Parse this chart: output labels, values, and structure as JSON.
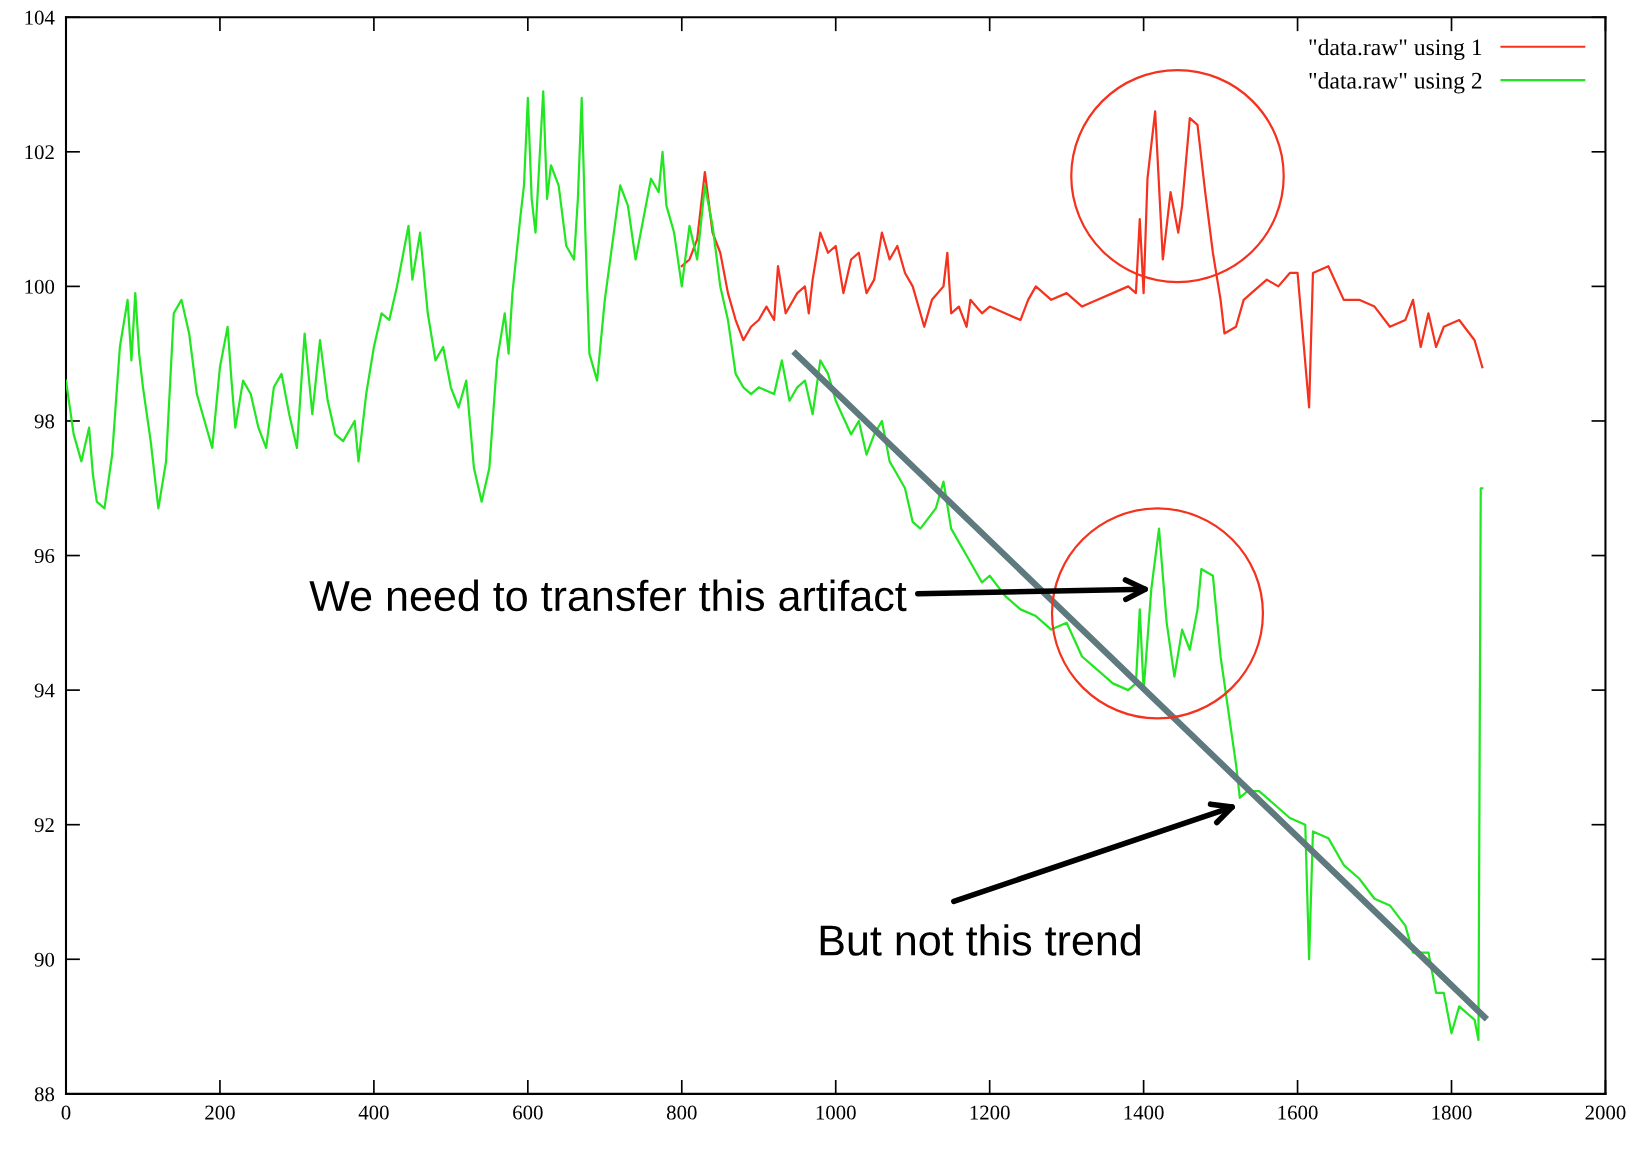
{
  "chart_data": {
    "type": "line",
    "xlim": [
      0,
      2000
    ],
    "ylim": [
      88,
      104
    ],
    "xticks": [
      0,
      200,
      400,
      600,
      800,
      1000,
      1200,
      1400,
      1600,
      1800,
      2000
    ],
    "yticks": [
      88,
      90,
      92,
      94,
      96,
      98,
      100,
      102,
      104
    ],
    "grid": false,
    "legend": "top right",
    "marker": "none",
    "line_style": "solid",
    "annotations": [
      {
        "text": "We need to transfer this artifact",
        "x": 1410,
        "y": 95.5
      },
      "But not this trend"
    ],
    "series": [
      {
        "name": "\"data.raw\" using 1",
        "color": "#f5321e",
        "x": [
          800,
          810,
          820,
          830,
          840,
          850,
          860,
          870,
          880,
          890,
          900,
          910,
          920,
          925,
          935,
          950,
          960,
          965,
          970,
          980,
          990,
          1000,
          1010,
          1020,
          1030,
          1040,
          1050,
          1060,
          1070,
          1080,
          1090,
          1100,
          1110,
          1115,
          1125,
          1140,
          1145,
          1150,
          1160,
          1170,
          1175,
          1190,
          1200,
          1220,
          1240,
          1250,
          1260,
          1280,
          1300,
          1320,
          1340,
          1360,
          1380,
          1390,
          1395,
          1400,
          1405,
          1415,
          1425,
          1435,
          1445,
          1450,
          1460,
          1470,
          1480,
          1490,
          1500,
          1505,
          1520,
          1530,
          1540,
          1560,
          1575,
          1590,
          1600,
          1615,
          1620,
          1640,
          1660,
          1680,
          1700,
          1720,
          1740,
          1750,
          1760,
          1770,
          1780,
          1790,
          1810,
          1830,
          1840
        ],
        "values": [
          100.3,
          100.4,
          100.7,
          101.7,
          100.8,
          100.5,
          99.9,
          99.5,
          99.2,
          99.4,
          99.5,
          99.7,
          99.5,
          100.3,
          99.6,
          99.9,
          100.0,
          99.6,
          100.1,
          100.8,
          100.5,
          100.6,
          99.9,
          100.4,
          100.5,
          99.9,
          100.1,
          100.8,
          100.4,
          100.6,
          100.2,
          100.0,
          99.6,
          99.4,
          99.8,
          100.0,
          100.5,
          99.6,
          99.7,
          99.4,
          99.8,
          99.6,
          99.7,
          99.6,
          99.5,
          99.8,
          100.0,
          99.8,
          99.9,
          99.7,
          99.8,
          99.9,
          100.0,
          99.9,
          101.0,
          99.9,
          101.6,
          102.6,
          100.4,
          101.4,
          100.8,
          101.2,
          102.5,
          102.4,
          101.4,
          100.5,
          99.8,
          99.3,
          99.4,
          99.8,
          99.9,
          100.1,
          100.0,
          100.2,
          100.2,
          98.2,
          100.2,
          100.3,
          99.8,
          99.8,
          99.7,
          99.4,
          99.5,
          99.8,
          99.1,
          99.6,
          99.1,
          99.4,
          99.5,
          99.2,
          98.8
        ]
      },
      {
        "name": "\"data.raw\" using 2",
        "color": "#22e622",
        "x": [
          0,
          10,
          20,
          30,
          35,
          40,
          50,
          60,
          70,
          80,
          85,
          90,
          95,
          100,
          110,
          120,
          130,
          140,
          150,
          160,
          170,
          180,
          190,
          200,
          210,
          215,
          220,
          230,
          240,
          250,
          260,
          270,
          280,
          290,
          300,
          310,
          320,
          330,
          340,
          350,
          360,
          375,
          380,
          390,
          400,
          410,
          420,
          430,
          445,
          450,
          460,
          470,
          480,
          490,
          500,
          510,
          520,
          530,
          540,
          550,
          560,
          570,
          575,
          580,
          590,
          595,
          600,
          605,
          610,
          620,
          625,
          630,
          640,
          650,
          660,
          665,
          670,
          675,
          680,
          690,
          700,
          720,
          730,
          740,
          750,
          760,
          770,
          775,
          780,
          790,
          800,
          810,
          820,
          830,
          840,
          850,
          860,
          870,
          880,
          890,
          900,
          920,
          930,
          940,
          950,
          960,
          970,
          980,
          990,
          1000,
          1020,
          1030,
          1040,
          1050,
          1060,
          1070,
          1080,
          1090,
          1100,
          1110,
          1130,
          1140,
          1150,
          1160,
          1170,
          1190,
          1200,
          1220,
          1240,
          1260,
          1280,
          1300,
          1320,
          1340,
          1360,
          1380,
          1390,
          1395,
          1400,
          1410,
          1420,
          1430,
          1440,
          1450,
          1460,
          1470,
          1475,
          1490,
          1500,
          1510,
          1520,
          1525,
          1535,
          1550,
          1570,
          1590,
          1610,
          1615,
          1620,
          1640,
          1660,
          1680,
          1700,
          1720,
          1740,
          1750,
          1770,
          1780,
          1790,
          1800,
          1810,
          1820,
          1830,
          1835,
          1838,
          1840
        ],
        "values": [
          98.6,
          97.8,
          97.4,
          97.9,
          97.2,
          96.8,
          96.7,
          97.5,
          99.1,
          99.8,
          98.9,
          99.9,
          99.0,
          98.5,
          97.7,
          96.7,
          97.4,
          99.6,
          99.8,
          99.3,
          98.4,
          98.0,
          97.6,
          98.8,
          99.4,
          98.6,
          97.9,
          98.6,
          98.4,
          97.9,
          97.6,
          98.5,
          98.7,
          98.1,
          97.6,
          99.3,
          98.1,
          99.2,
          98.3,
          97.8,
          97.7,
          98.0,
          97.4,
          98.4,
          99.1,
          99.6,
          99.5,
          100.0,
          100.9,
          100.1,
          100.8,
          99.6,
          98.9,
          99.1,
          98.5,
          98.2,
          98.6,
          97.3,
          96.8,
          97.3,
          98.9,
          99.6,
          99.0,
          99.9,
          101.0,
          101.5,
          102.8,
          101.3,
          100.8,
          102.9,
          101.3,
          101.8,
          101.5,
          100.6,
          100.4,
          101.3,
          102.8,
          100.7,
          99.0,
          98.6,
          99.8,
          101.5,
          101.2,
          100.4,
          101.0,
          101.6,
          101.4,
          102.0,
          101.2,
          100.8,
          100.0,
          100.9,
          100.4,
          101.5,
          100.9,
          100.0,
          99.5,
          98.7,
          98.5,
          98.4,
          98.5,
          98.4,
          98.9,
          98.3,
          98.5,
          98.6,
          98.1,
          98.9,
          98.7,
          98.3,
          97.8,
          98.0,
          97.5,
          97.8,
          98.0,
          97.4,
          97.2,
          97.0,
          96.5,
          96.4,
          96.7,
          97.1,
          96.4,
          96.2,
          96.0,
          95.6,
          95.7,
          95.4,
          95.2,
          95.1,
          94.9,
          95.0,
          94.5,
          94.3,
          94.1,
          94.0,
          94.1,
          95.2,
          94.0,
          95.5,
          96.4,
          95.0,
          94.2,
          94.9,
          94.6,
          95.2,
          95.8,
          95.7,
          94.5,
          93.7,
          92.9,
          92.4,
          92.5,
          92.5,
          92.3,
          92.1,
          92.0,
          90.0,
          91.9,
          91.8,
          91.4,
          91.2,
          90.9,
          90.8,
          90.5,
          90.1,
          90.1,
          89.5,
          89.5,
          88.9,
          89.3,
          89.2,
          89.1,
          88.8,
          97.0,
          97.0
        ]
      },
      {
        "type": "line",
        "color": "#5f7a7e",
        "x": [
          948,
          1843
        ],
        "values": [
          99.0,
          89.14
        ]
      }
    ]
  }
}
